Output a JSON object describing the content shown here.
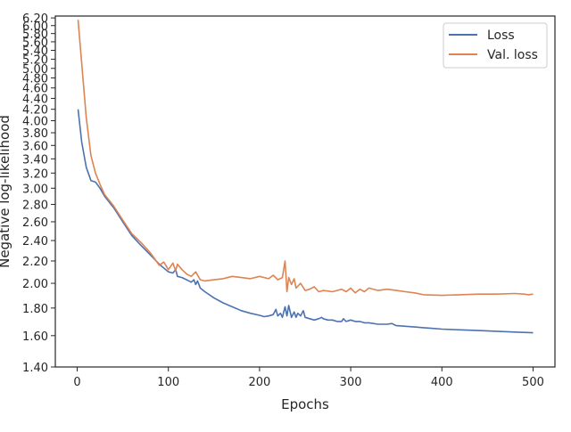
{
  "chart_data": {
    "type": "line",
    "title": "",
    "xlabel": "Epochs",
    "ylabel": "Negative log-likelihood",
    "yscale": "log",
    "xlim": [
      -24,
      524
    ],
    "ylim": [
      1.4,
      6.25
    ],
    "grid": false,
    "legend_position": "top-right",
    "x_ticks": [
      {
        "value": 0,
        "label": "0"
      },
      {
        "value": 100,
        "label": "100"
      },
      {
        "value": 200,
        "label": "200"
      },
      {
        "value": 300,
        "label": "300"
      },
      {
        "value": 400,
        "label": "400"
      },
      {
        "value": 500,
        "label": "500"
      }
    ],
    "y_ticks": [
      {
        "value": 1.4,
        "label": "1.40"
      },
      {
        "value": 1.6,
        "label": "1.60"
      },
      {
        "value": 1.8,
        "label": "1.80"
      },
      {
        "value": 2.0,
        "label": "2.00"
      },
      {
        "value": 2.2,
        "label": "2.20"
      },
      {
        "value": 2.4,
        "label": "2.40"
      },
      {
        "value": 2.6,
        "label": "2.60"
      },
      {
        "value": 2.8,
        "label": "2.80"
      },
      {
        "value": 3.0,
        "label": "3.00"
      },
      {
        "value": 3.2,
        "label": "3.20"
      },
      {
        "value": 3.4,
        "label": "3.40"
      },
      {
        "value": 3.6,
        "label": "3.60"
      },
      {
        "value": 3.8,
        "label": "3.80"
      },
      {
        "value": 4.0,
        "label": "4.00"
      },
      {
        "value": 4.2,
        "label": "4.20"
      },
      {
        "value": 4.4,
        "label": "4.40"
      },
      {
        "value": 4.6,
        "label": "4.60"
      },
      {
        "value": 4.8,
        "label": "4.80"
      },
      {
        "value": 5.0,
        "label": "5.00"
      },
      {
        "value": 5.2,
        "label": "5.20"
      },
      {
        "value": 5.4,
        "label": "5.40"
      },
      {
        "value": 5.6,
        "label": "5.60"
      },
      {
        "value": 5.8,
        "label": "5.80"
      },
      {
        "value": 6.0,
        "label": "6.00"
      },
      {
        "value": 6.2,
        "label": "6.20"
      }
    ],
    "series": [
      {
        "name": "Loss",
        "color": "#4c72b0",
        "x": [
          1,
          5,
          10,
          15,
          20,
          25,
          30,
          40,
          50,
          60,
          70,
          80,
          90,
          100,
          105,
          108,
          110,
          115,
          120,
          125,
          128,
          130,
          132,
          135,
          140,
          150,
          160,
          170,
          180,
          190,
          200,
          205,
          210,
          215,
          218,
          220,
          223,
          225,
          228,
          230,
          232,
          235,
          238,
          240,
          242,
          245,
          248,
          250,
          255,
          260,
          265,
          268,
          270,
          275,
          280,
          285,
          290,
          292,
          295,
          300,
          305,
          310,
          315,
          320,
          330,
          340,
          345,
          350,
          360,
          370,
          380,
          390,
          400,
          420,
          440,
          460,
          480,
          500
        ],
        "y": [
          4.2,
          3.65,
          3.28,
          3.1,
          3.08,
          3.0,
          2.9,
          2.76,
          2.6,
          2.45,
          2.35,
          2.26,
          2.17,
          2.1,
          2.09,
          2.12,
          2.06,
          2.05,
          2.03,
          2.01,
          2.03,
          1.99,
          2.02,
          1.96,
          1.93,
          1.88,
          1.84,
          1.81,
          1.78,
          1.76,
          1.745,
          1.735,
          1.74,
          1.75,
          1.79,
          1.74,
          1.76,
          1.73,
          1.81,
          1.74,
          1.82,
          1.73,
          1.77,
          1.73,
          1.76,
          1.74,
          1.78,
          1.73,
          1.72,
          1.71,
          1.72,
          1.73,
          1.72,
          1.71,
          1.71,
          1.7,
          1.7,
          1.72,
          1.7,
          1.71,
          1.7,
          1.7,
          1.69,
          1.69,
          1.68,
          1.68,
          1.685,
          1.67,
          1.665,
          1.66,
          1.655,
          1.65,
          1.645,
          1.64,
          1.635,
          1.63,
          1.625,
          1.62
        ]
      },
      {
        "name": "Val. loss",
        "color": "#dd8452",
        "x": [
          1,
          5,
          10,
          15,
          20,
          25,
          30,
          40,
          50,
          60,
          70,
          80,
          85,
          90,
          95,
          100,
          105,
          108,
          110,
          115,
          120,
          125,
          130,
          135,
          140,
          150,
          160,
          170,
          180,
          190,
          200,
          210,
          215,
          220,
          225,
          228,
          230,
          232,
          235,
          238,
          240,
          245,
          250,
          255,
          260,
          265,
          270,
          280,
          290,
          295,
          300,
          305,
          310,
          315,
          320,
          330,
          340,
          350,
          360,
          370,
          380,
          400,
          420,
          440,
          460,
          480,
          490,
          495,
          500
        ],
        "y": [
          6.15,
          5.1,
          4.05,
          3.45,
          3.2,
          3.05,
          2.92,
          2.78,
          2.62,
          2.47,
          2.38,
          2.28,
          2.22,
          2.16,
          2.19,
          2.12,
          2.18,
          2.11,
          2.17,
          2.12,
          2.08,
          2.06,
          2.1,
          2.03,
          2.02,
          2.03,
          2.04,
          2.06,
          2.05,
          2.04,
          2.06,
          2.04,
          2.07,
          2.03,
          2.05,
          2.2,
          1.93,
          2.05,
          1.99,
          2.04,
          1.96,
          2.0,
          1.94,
          1.95,
          1.97,
          1.93,
          1.94,
          1.93,
          1.95,
          1.93,
          1.96,
          1.92,
          1.95,
          1.93,
          1.96,
          1.94,
          1.95,
          1.94,
          1.93,
          1.92,
          1.905,
          1.9,
          1.905,
          1.91,
          1.91,
          1.915,
          1.91,
          1.905,
          1.91
        ]
      }
    ]
  }
}
